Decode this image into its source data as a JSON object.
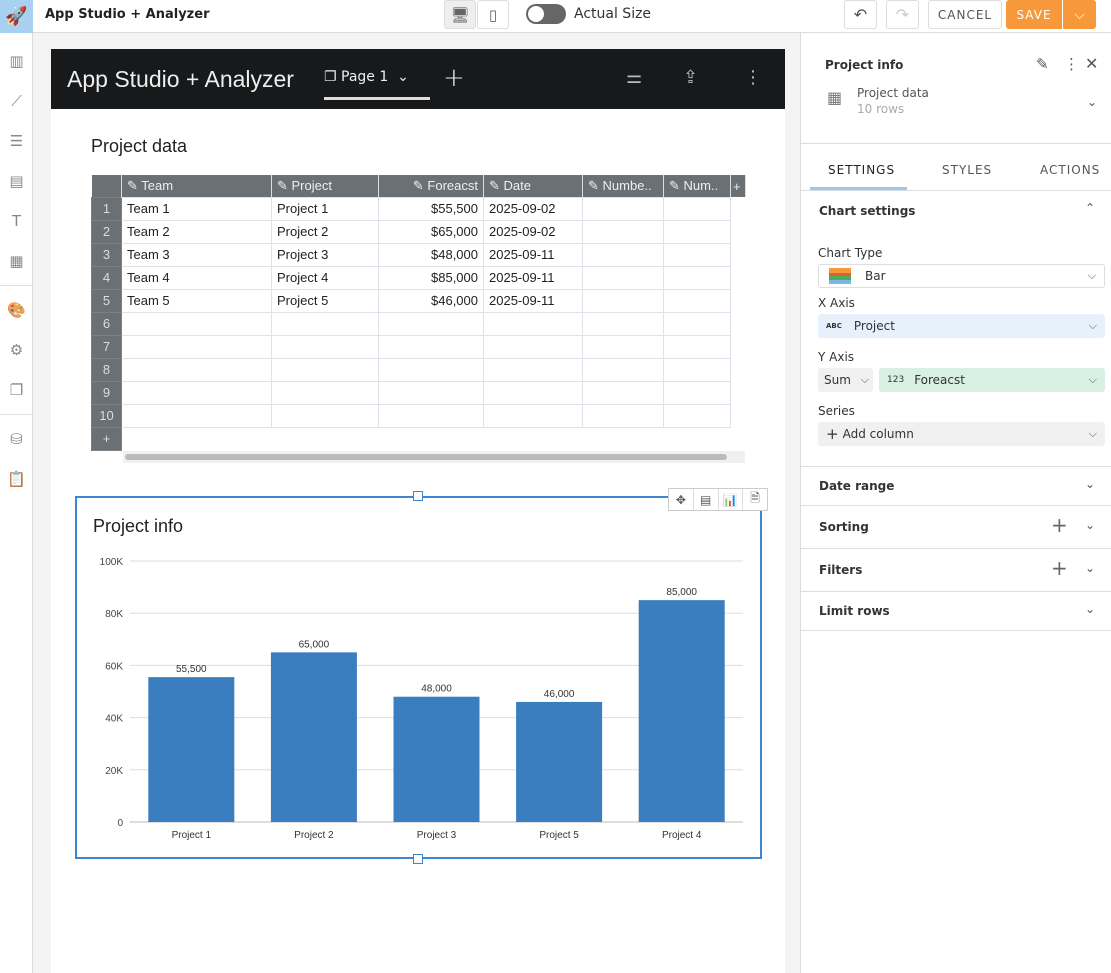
{
  "app": {
    "title": "App Studio + Analyzer",
    "actual_size": "Actual Size",
    "cancel": "CANCEL",
    "save": "SAVE"
  },
  "page": {
    "title": "App Studio + Analyzer",
    "tab": "Page 1"
  },
  "table": {
    "title": "Project data",
    "columns": [
      "Team",
      "Project",
      "Foreacst",
      "Date",
      "Numbe..",
      "Num.."
    ],
    "rows": [
      [
        "1",
        "Team 1",
        "Project 1",
        "$55,500",
        "2025-09-02"
      ],
      [
        "2",
        "Team 2",
        "Project 2",
        "$65,000",
        "2025-09-02"
      ],
      [
        "3",
        "Team 3",
        "Project 3",
        "$48,000",
        "2025-09-11"
      ],
      [
        "4",
        "Team 4",
        "Project 4",
        "$85,000",
        "2025-09-11"
      ],
      [
        "5",
        "Team 5",
        "Project 5",
        "$46,000",
        "2025-09-11"
      ],
      [
        "6",
        "",
        "",
        "",
        ""
      ],
      [
        "7",
        "",
        "",
        "",
        ""
      ],
      [
        "8",
        "",
        "",
        "",
        ""
      ],
      [
        "9",
        "",
        "",
        "",
        ""
      ],
      [
        "10",
        "",
        "",
        "",
        ""
      ]
    ],
    "add": "+"
  },
  "chart_data": {
    "type": "bar",
    "title": "Project info",
    "categories": [
      "Project 1",
      "Project 2",
      "Project 3",
      "Project 5",
      "Project 4"
    ],
    "values": [
      55500,
      65000,
      48000,
      46000,
      85000
    ],
    "data_labels": [
      "55,500",
      "65,000",
      "48,000",
      "46,000",
      "85,000"
    ],
    "yticks": [
      0,
      20000,
      40000,
      60000,
      80000,
      100000
    ],
    "ytick_labels": [
      "0",
      "20K",
      "40K",
      "60K",
      "80K",
      "100K"
    ],
    "ylim": [
      0,
      100000
    ],
    "color": "#3a7ebf",
    "grid": true
  },
  "panel": {
    "title": "Project info",
    "source": "Project data",
    "rows": "10 rows",
    "tabs": [
      "SETTINGS",
      "STYLES",
      "ACTIONS"
    ],
    "chart_settings": "Chart settings",
    "chart_type_label": "Chart Type",
    "chart_type": "Bar",
    "x_axis_label": "X Axis",
    "x_type": "ABC",
    "x_value": "Project",
    "y_axis_label": "Y Axis",
    "agg": "Sum",
    "y_type": "123",
    "y_value": "Foreacst",
    "series_label": "Series",
    "add_column": "Add column",
    "sections": [
      "Date range",
      "Sorting",
      "Filters",
      "Limit rows"
    ]
  }
}
